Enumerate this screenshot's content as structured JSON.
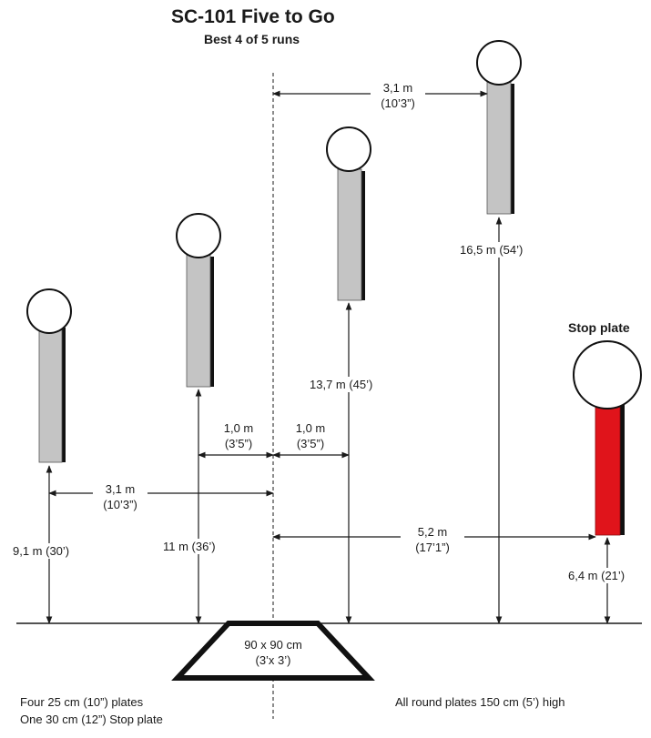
{
  "header": {
    "title": "SC-101 Five to Go",
    "subtitle": "Best 4 of 5 runs"
  },
  "labels": {
    "stop_plate": "Stop plate",
    "box_size_metric": "90 x 90 cm",
    "box_size_imperial": "(3’x 3’)",
    "height_1": "9,1 m (30’)",
    "height_2": "11 m (36’)",
    "height_3": "13,7 m (45’)",
    "height_4": "16,5 m (54’)",
    "height_stop": "6,4 m (21’)",
    "gap_left_m": "3,1 m",
    "gap_left_ft": "(10’3”)",
    "gap_top_m": "3,1 m",
    "gap_top_ft": "(10’3”)",
    "gap_center_left_m": "1,0 m",
    "gap_center_left_ft": "(3’5”)",
    "gap_center_right_m": "1,0 m",
    "gap_center_right_ft": "(3’5”)",
    "gap_stop_m": "5,2 m",
    "gap_stop_ft": "(17’1”)"
  },
  "notes": {
    "plates_line1": "Four 25 cm (10”) plates",
    "plates_line2": "One 30 cm (12”) Stop plate",
    "height_note": "All round plates 150 cm (5’) high"
  },
  "colors": {
    "post": "#c4c4c4",
    "stop_post": "#e0141b",
    "line": "#1a1a1a"
  }
}
